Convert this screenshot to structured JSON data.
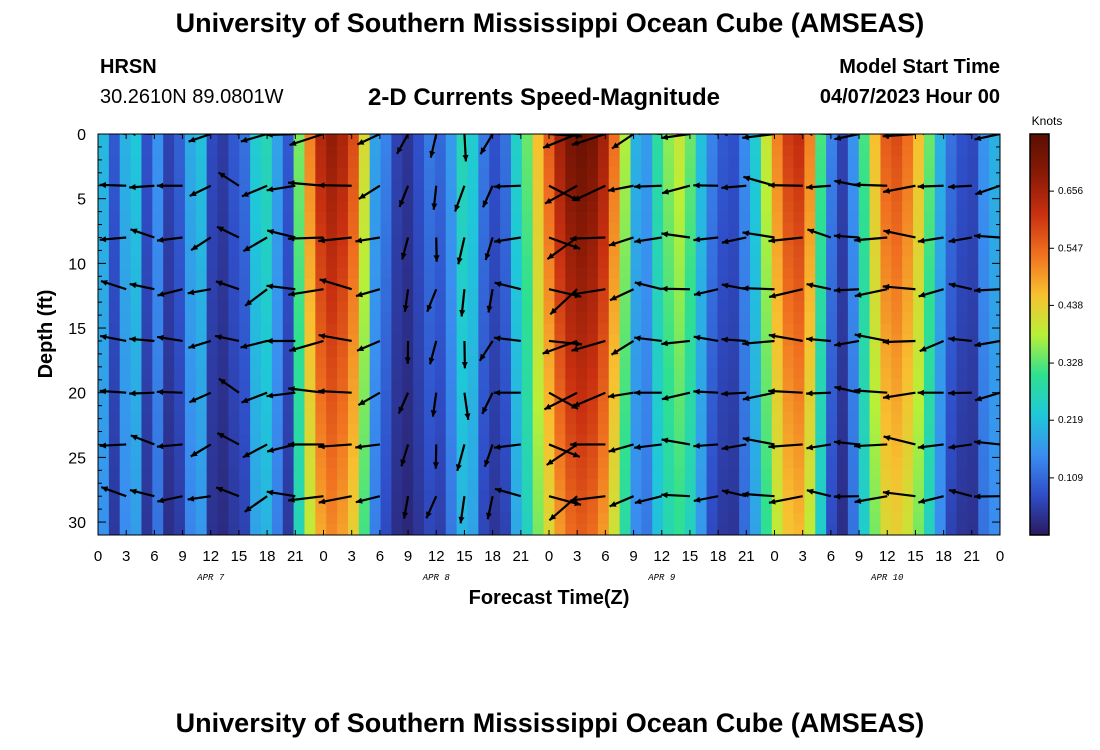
{
  "header": {
    "title": "University of Southern Mississippi Ocean Cube (AMSEAS)",
    "station": "HRSN",
    "coordinates": "30.2610N  89.0801W",
    "subtitle": "2-D Currents Speed-Magnitude",
    "model_start_label": "Model Start Time",
    "model_start_value": "04/07/2023 Hour 00"
  },
  "footer": {
    "title": "University of Southern Mississippi Ocean Cube (AMSEAS)"
  },
  "chart_data": {
    "type": "heatmap",
    "xlabel": "Forecast Time(Z)",
    "ylabel": "Depth (ft)",
    "x_ticks": [
      "0",
      "3",
      "6",
      "9",
      "12",
      "15",
      "18",
      "21",
      "0",
      "3",
      "6",
      "9",
      "12",
      "15",
      "18",
      "21",
      "0",
      "3",
      "6",
      "9",
      "12",
      "15",
      "18",
      "21",
      "0",
      "3",
      "6",
      "9",
      "12",
      "15",
      "18",
      "21",
      "0"
    ],
    "x_range_hours": [
      0,
      96
    ],
    "day_labels": [
      {
        "label": "APR 7",
        "hour": 12
      },
      {
        "label": "APR 8",
        "hour": 36
      },
      {
        "label": "APR 9",
        "hour": 60
      },
      {
        "label": "APR 10",
        "hour": 84
      }
    ],
    "y_ticks": [
      0,
      5,
      10,
      15,
      20,
      25,
      30
    ],
    "ylim": [
      0,
      31
    ],
    "depth_levels": [
      0,
      4,
      8,
      12,
      16,
      20,
      24,
      28
    ],
    "colorbar": {
      "unit": "Knots",
      "ticks": [
        "0.109",
        "0.219",
        "0.328",
        "0.438",
        "0.547",
        "0.656"
      ],
      "range": [
        0,
        0.765
      ],
      "colors": [
        "#2a1a5e",
        "#2f4ec8",
        "#3a8ef0",
        "#1fc8d8",
        "#2fe090",
        "#b8f038",
        "#f8c030",
        "#f07020",
        "#c83010",
        "#8a1a06",
        "#5a0e02"
      ]
    },
    "speed_profile_knots": [
      0.21,
      0.09,
      0.2,
      0.23,
      0.08,
      0.16,
      0.06,
      0.1,
      0.19,
      0.22,
      0.07,
      0.05,
      0.09,
      0.12,
      0.24,
      0.27,
      0.18,
      0.09,
      0.35,
      0.52,
      0.64,
      0.68,
      0.65,
      0.58,
      0.42,
      0.18,
      0.14,
      0.06,
      0.04,
      0.08,
      0.13,
      0.11,
      0.17,
      0.27,
      0.24,
      0.13,
      0.08,
      0.12,
      0.25,
      0.34,
      0.46,
      0.56,
      0.66,
      0.72,
      0.74,
      0.72,
      0.66,
      0.54,
      0.38,
      0.2,
      0.17,
      0.29,
      0.36,
      0.4,
      0.34,
      0.22,
      0.14,
      0.09,
      0.08,
      0.15,
      0.24,
      0.4,
      0.52,
      0.6,
      0.62,
      0.52,
      0.32,
      0.14,
      0.06,
      0.16,
      0.32,
      0.46,
      0.56,
      0.58,
      0.54,
      0.46,
      0.34,
      0.2,
      0.12,
      0.08,
      0.07,
      0.16,
      0.2
    ],
    "vector_times_hours": [
      0,
      3,
      6,
      9,
      12,
      15,
      18,
      21,
      24,
      27,
      30,
      33,
      36,
      39,
      42,
      45,
      48,
      51,
      54,
      57,
      60,
      63,
      66,
      69,
      72,
      75,
      78,
      81,
      84,
      87,
      90,
      93,
      96
    ],
    "vector_directions_deg": [
      190,
      175,
      170,
      185,
      200,
      160,
      205,
      180,
      185,
      178,
      200,
      255,
      260,
      265,
      250,
      175,
      345,
      210,
      195,
      200,
      180,
      182,
      185,
      180,
      178,
      182,
      176,
      180,
      178,
      180,
      190,
      180,
      185
    ]
  }
}
